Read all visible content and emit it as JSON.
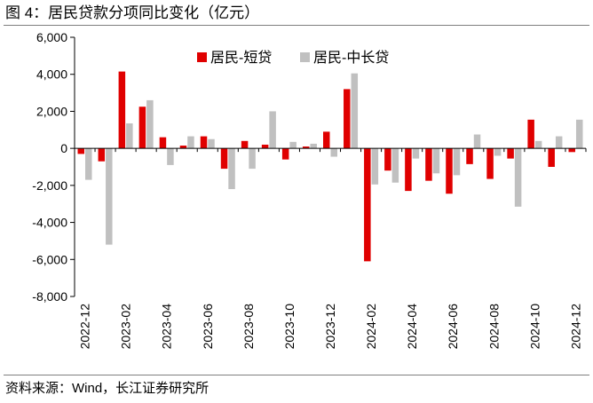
{
  "figure": {
    "title": "图 4：居民贷款分项同比变化（亿元）",
    "source": "资料来源：Wind，长江证券研究所"
  },
  "chart_data": {
    "type": "bar",
    "title": "居民贷款分项同比变化（亿元）",
    "xlabel": "",
    "ylabel": "",
    "ylim": [
      -8000,
      6000
    ],
    "yticks": [
      6000,
      4000,
      2000,
      0,
      -2000,
      -4000,
      -6000,
      -8000
    ],
    "ytick_labels": [
      "6,000",
      "4,000",
      "2,000",
      "0",
      "-2,000",
      "-4,000",
      "-6,000",
      "-8,000"
    ],
    "legend_position": "top-right",
    "categories": [
      "2022-12",
      "2023-01",
      "2023-02",
      "2023-03",
      "2023-04",
      "2023-05",
      "2023-06",
      "2023-07",
      "2023-08",
      "2023-09",
      "2023-10",
      "2023-11",
      "2023-12",
      "2024-01",
      "2024-02",
      "2024-03",
      "2024-04",
      "2024-05",
      "2024-06",
      "2024-07",
      "2024-08",
      "2024-09",
      "2024-10",
      "2024-11",
      "2024-12"
    ],
    "xtick_labels": [
      "2022-12",
      "2023-02",
      "2023-04",
      "2023-06",
      "2023-08",
      "2023-10",
      "2023-12",
      "2024-02",
      "2024-04",
      "2024-06",
      "2024-08",
      "2024-10",
      "2024-12"
    ],
    "series": [
      {
        "name": "居民-短贷",
        "color": "#e00000",
        "values": [
          -300,
          -700,
          4150,
          2250,
          600,
          150,
          650,
          -1100,
          400,
          200,
          -600,
          100,
          900,
          3200,
          -6100,
          -1200,
          -2300,
          -1750,
          -2450,
          -850,
          -1650,
          -550,
          1550,
          -1000,
          -200
        ]
      },
      {
        "name": "居民-中长贷",
        "color": "#c0c0c0",
        "values": [
          -1700,
          -5200,
          1350,
          2600,
          -900,
          650,
          500,
          -2200,
          -1100,
          2000,
          350,
          250,
          -450,
          4050,
          -1950,
          -1850,
          -550,
          -1350,
          -1450,
          750,
          -400,
          -3150,
          400,
          650,
          1550
        ]
      }
    ]
  }
}
